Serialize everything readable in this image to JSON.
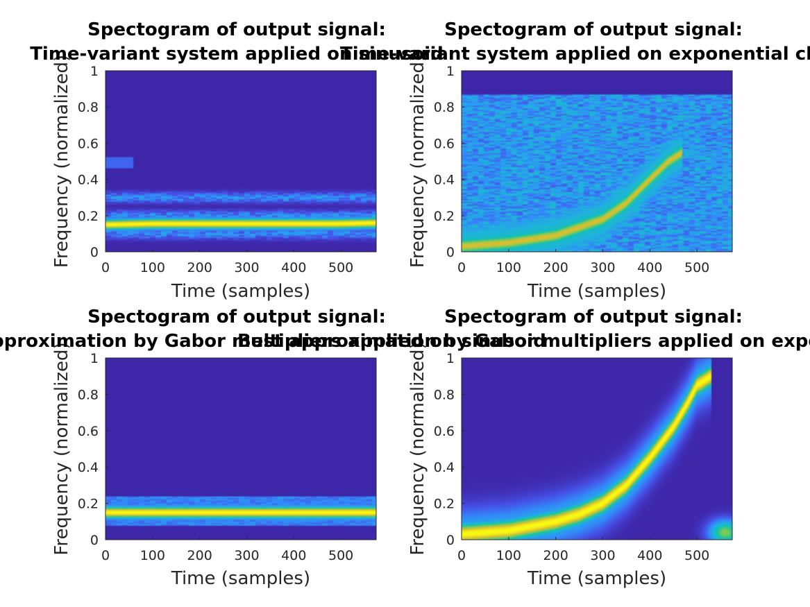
{
  "chart_data": [
    {
      "type": "heatmap",
      "title_lines": [
        "Spectogram of output signal:",
        "Time-variant system applied on sinusoid"
      ],
      "xlabel": "Time (samples)",
      "ylabel": "Frequency (normalized)",
      "xlim": [
        0,
        575
      ],
      "ylim": [
        0,
        1
      ],
      "xticks": [
        0,
        100,
        200,
        300,
        400,
        500
      ],
      "yticks": [
        0,
        0.2,
        0.4,
        0.6,
        0.8,
        1
      ],
      "colormap": "parula",
      "grid": false,
      "ridge": [
        [
          0,
          0.15
        ],
        [
          100,
          0.155
        ],
        [
          200,
          0.155
        ],
        [
          300,
          0.155
        ],
        [
          400,
          0.155
        ],
        [
          500,
          0.155
        ],
        [
          575,
          0.16
        ]
      ],
      "ridge_width": 0.022,
      "background_energy": "low",
      "side_bands": [
        0.1,
        0.2,
        0.3
      ]
    },
    {
      "type": "heatmap",
      "title_lines": [
        "Spectogram of output signal:",
        "Time-variant system applied on exponential chirp"
      ],
      "xlabel": "Time (samples)",
      "ylabel": "Frequency (normalized)",
      "xlim": [
        0,
        575
      ],
      "ylim": [
        0,
        1
      ],
      "xticks": [
        0,
        100,
        200,
        300,
        400,
        500
      ],
      "yticks": [
        0,
        0.2,
        0.4,
        0.6,
        0.8,
        1
      ],
      "colormap": "parula",
      "grid": false,
      "ridge": [
        [
          0,
          0.03
        ],
        [
          100,
          0.05
        ],
        [
          200,
          0.09
        ],
        [
          300,
          0.18
        ],
        [
          350,
          0.27
        ],
        [
          400,
          0.4
        ],
        [
          440,
          0.5
        ],
        [
          470,
          0.55
        ]
      ],
      "ridge_width": 0.035,
      "background_energy": "high",
      "band_top": 0.87
    },
    {
      "type": "heatmap",
      "title_lines": [
        "Spectogram of output signal:",
        "Best approximation by Gabor multipliers applied on sinusoid"
      ],
      "xlabel": "Time (samples)",
      "ylabel": "Frequency (normalized)",
      "xlim": [
        0,
        575
      ],
      "ylim": [
        0,
        1
      ],
      "xticks": [
        0,
        100,
        200,
        300,
        400,
        500
      ],
      "yticks": [
        0,
        0.2,
        0.4,
        0.6,
        0.8,
        1
      ],
      "colormap": "parula",
      "grid": false,
      "ridge": [
        [
          0,
          0.15
        ],
        [
          100,
          0.15
        ],
        [
          200,
          0.15
        ],
        [
          300,
          0.15
        ],
        [
          400,
          0.15
        ],
        [
          500,
          0.15
        ],
        [
          575,
          0.15
        ]
      ],
      "ridge_width": 0.025,
      "background_energy": "none",
      "band": [
        0.08,
        0.24
      ]
    },
    {
      "type": "heatmap",
      "title_lines": [
        "Spectogram of output signal:",
        "Best approximation by Gabor multipliers applied on exponential chirp"
      ],
      "xlabel": "Time (samples)",
      "ylabel": "Frequency (normalized)",
      "xlim": [
        0,
        575
      ],
      "ylim": [
        0,
        1
      ],
      "xticks": [
        0,
        100,
        200,
        300,
        400,
        500
      ],
      "yticks": [
        0,
        0.2,
        0.4,
        0.6,
        0.8,
        1
      ],
      "colormap": "parula",
      "grid": false,
      "ridge": [
        [
          0,
          0.03
        ],
        [
          100,
          0.05
        ],
        [
          200,
          0.1
        ],
        [
          250,
          0.14
        ],
        [
          300,
          0.2
        ],
        [
          350,
          0.3
        ],
        [
          400,
          0.45
        ],
        [
          450,
          0.62
        ],
        [
          480,
          0.75
        ],
        [
          500,
          0.85
        ],
        [
          530,
          0.9
        ]
      ],
      "ridge_width": 0.045,
      "background_energy": "none",
      "extra_blob": [
        560,
        0.04
      ]
    }
  ]
}
